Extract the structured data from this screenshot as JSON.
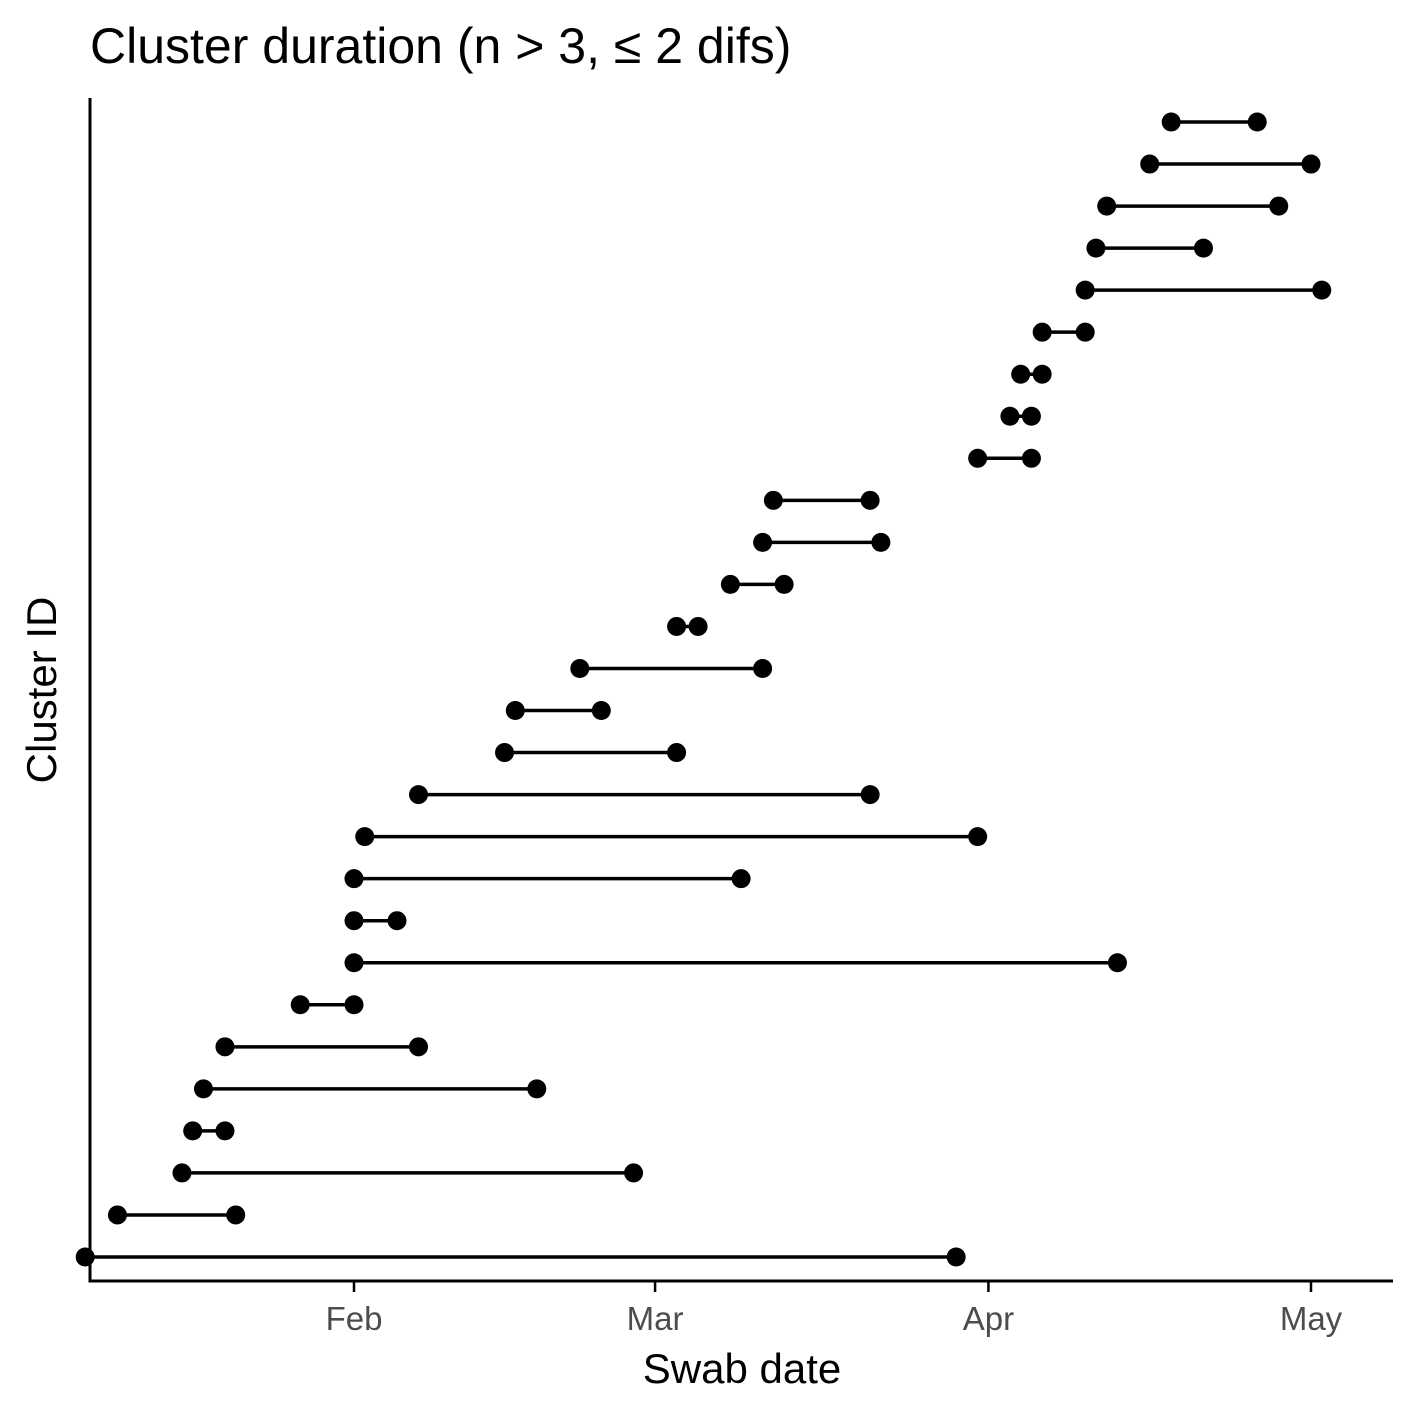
{
  "chart_data": {
    "type": "dumbbell",
    "title": "Cluster duration (n > 3, ≤ 2 difs)",
    "xlabel": "Swab date",
    "ylabel": "Cluster ID",
    "x_ticks": [
      {
        "label": "Feb",
        "date": "2021-02-01"
      },
      {
        "label": "Mar",
        "date": "2021-03-01"
      },
      {
        "label": "Apr",
        "date": "2021-04-01"
      },
      {
        "label": "May",
        "date": "2021-05-01"
      }
    ],
    "xlim": [
      "2021-01-07",
      "2021-05-08"
    ],
    "grid": false,
    "legend": "none",
    "colors": {
      "mark": "#000000",
      "axis": "#000000",
      "tick_label": "#4d4d4d"
    },
    "clusters": [
      {
        "start": "2021-01-07",
        "end": "2021-03-29"
      },
      {
        "start": "2021-01-10",
        "end": "2021-01-21"
      },
      {
        "start": "2021-01-16",
        "end": "2021-02-27"
      },
      {
        "start": "2021-01-17",
        "end": "2021-01-20"
      },
      {
        "start": "2021-01-18",
        "end": "2021-02-18"
      },
      {
        "start": "2021-01-20",
        "end": "2021-02-07"
      },
      {
        "start": "2021-01-27",
        "end": "2021-02-01"
      },
      {
        "start": "2021-02-01",
        "end": "2021-04-13"
      },
      {
        "start": "2021-02-01",
        "end": "2021-02-05"
      },
      {
        "start": "2021-02-01",
        "end": "2021-03-09"
      },
      {
        "start": "2021-02-02",
        "end": "2021-03-31"
      },
      {
        "start": "2021-02-07",
        "end": "2021-03-21"
      },
      {
        "start": "2021-02-15",
        "end": "2021-03-03"
      },
      {
        "start": "2021-02-16",
        "end": "2021-02-24"
      },
      {
        "start": "2021-02-22",
        "end": "2021-03-11"
      },
      {
        "start": "2021-03-03",
        "end": "2021-03-05"
      },
      {
        "start": "2021-03-08",
        "end": "2021-03-13"
      },
      {
        "start": "2021-03-11",
        "end": "2021-03-22"
      },
      {
        "start": "2021-03-12",
        "end": "2021-03-21"
      },
      {
        "start": "2021-03-31",
        "end": "2021-04-05"
      },
      {
        "start": "2021-04-03",
        "end": "2021-04-05"
      },
      {
        "start": "2021-04-04",
        "end": "2021-04-06"
      },
      {
        "start": "2021-04-06",
        "end": "2021-04-10"
      },
      {
        "start": "2021-04-10",
        "end": "2021-05-02"
      },
      {
        "start": "2021-04-11",
        "end": "2021-04-21"
      },
      {
        "start": "2021-04-12",
        "end": "2021-04-28"
      },
      {
        "start": "2021-04-16",
        "end": "2021-05-01"
      },
      {
        "start": "2021-04-18",
        "end": "2021-04-26"
      }
    ]
  }
}
